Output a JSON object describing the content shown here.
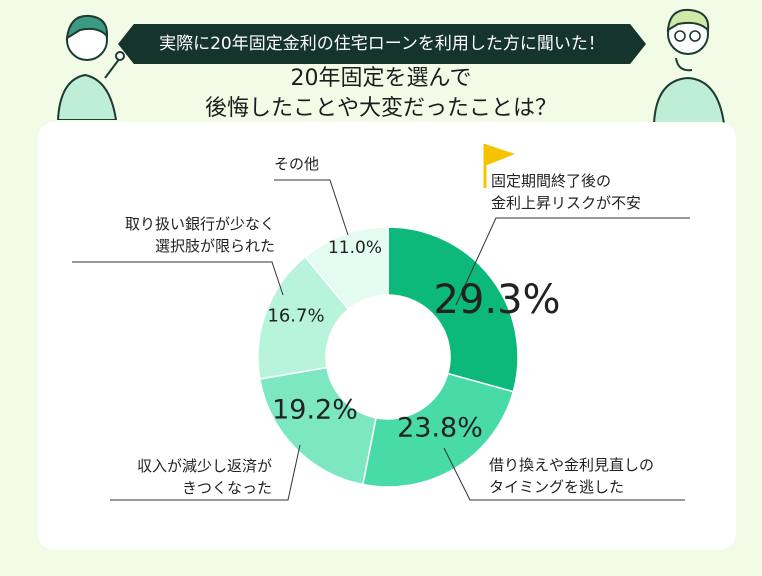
{
  "banner": "実際に20年固定金利の住宅ローンを利用した方に聞いた！",
  "headline": [
    "20年固定を選んで",
    "後悔したことや大変だったことは？"
  ],
  "colors": {
    "background": "#f1fbe6",
    "banner": "#14342c",
    "slice1": "#0db97a",
    "slice2": "#48dba8",
    "slice3": "#7de7c2",
    "slice4": "#b8f3dc",
    "slice5": "#e3fbf0",
    "flag": "#f5c400"
  },
  "chart_data": {
    "type": "pie",
    "donut": true,
    "legend": "none",
    "slices": [
      {
        "label": [
          "固定期間終了後の",
          "金利上昇リスクが不安"
        ],
        "value": 29.3,
        "display": "29.3%"
      },
      {
        "label": [
          "借り換えや金利見直しの",
          "タイミングを逃した"
        ],
        "value": 23.8,
        "display": "23.8%"
      },
      {
        "label": [
          "収入が減少し返済が",
          "きつくなった"
        ],
        "value": 19.2,
        "display": "19.2%"
      },
      {
        "label": [
          "取り扱い銀行が少なく",
          "選択肢が限られた"
        ],
        "value": 16.7,
        "display": "16.7%"
      },
      {
        "label": [
          "その他"
        ],
        "value": 11.0,
        "display": "11.0%"
      }
    ]
  }
}
